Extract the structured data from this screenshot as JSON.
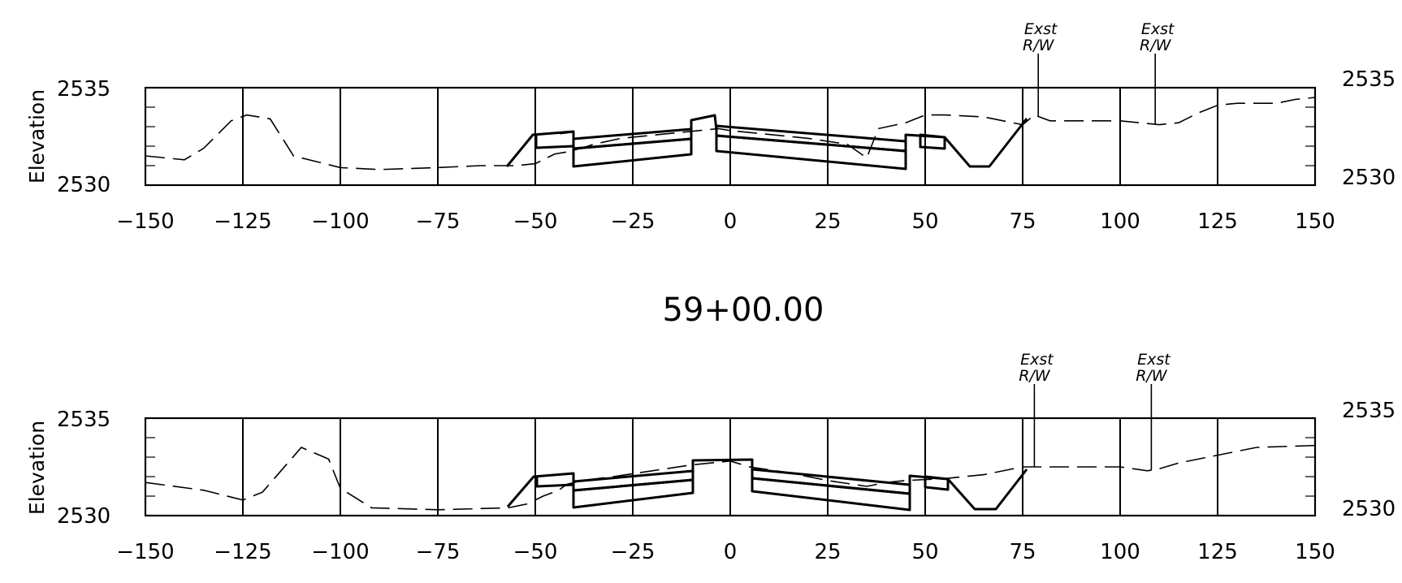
{
  "station_label": "59+00.00",
  "axis_title": "Elevation",
  "x_tick_labels": [
    "−150",
    "−125",
    "−100",
    "−75",
    "−50",
    "−25",
    "0",
    "25",
    "50",
    "75",
    "100",
    "125",
    "150"
  ],
  "panels": [
    {
      "id": "upper",
      "elevation_labels": {
        "top": "2535",
        "bottom": "2530"
      },
      "right_labels": {
        "top": "2535",
        "bottom": "2530"
      },
      "rw_markers": [
        {
          "offset": 79,
          "line1": "Exst",
          "line2": "R/W"
        },
        {
          "offset": 109,
          "line1": "Exst",
          "line2": "R/W"
        }
      ]
    },
    {
      "id": "lower",
      "elevation_labels": {
        "top": "2535",
        "bottom": "2530"
      },
      "right_labels": {
        "top": "2535",
        "bottom": "2530"
      },
      "rw_markers": [
        {
          "offset": 78,
          "line1": "Exst",
          "line2": "R/W"
        },
        {
          "offset": 108,
          "line1": "Exst",
          "line2": "R/W"
        }
      ]
    }
  ],
  "chart_data": [
    {
      "type": "line",
      "xlim": [
        -150,
        150
      ],
      "ylim": [
        2530,
        2535
      ],
      "xlabel": "",
      "ylabel": "Elevation",
      "series": [
        {
          "style": "dashed",
          "x": [
            -150,
            -140,
            -135,
            -128,
            -124,
            -118,
            -112,
            -100,
            -90,
            -75,
            -64,
            -55,
            -50,
            -45,
            -42,
            -38,
            -35,
            -28,
            -18,
            -8,
            -3,
            0,
            5,
            10,
            20,
            30,
            35,
            38,
            45,
            50,
            55,
            65,
            75,
            78,
            82,
            90,
            100,
            105,
            110,
            115,
            120,
            125,
            130,
            135,
            140,
            145,
            150
          ],
          "y": [
            2531.5,
            2531.3,
            2531.9,
            2533.3,
            2533.6,
            2533.4,
            2531.5,
            2530.9,
            2530.8,
            2530.9,
            2531.0,
            2531.0,
            2531.1,
            2531.6,
            2531.7,
            2531.9,
            2532.1,
            2532.4,
            2532.6,
            2532.8,
            2532.9,
            2532.8,
            2532.7,
            2532.6,
            2532.4,
            2532.1,
            2531.4,
            2532.9,
            2533.2,
            2533.6,
            2533.6,
            2533.5,
            2533.1,
            2533.6,
            2533.3,
            2533.3,
            2533.3,
            2533.2,
            2533.1,
            2533.2,
            2533.7,
            2534.1,
            2534.2,
            2534.2,
            2534.2,
            2534.4,
            2534.5
          ]
        }
      ]
    },
    {
      "type": "line",
      "xlim": [
        -150,
        150
      ],
      "ylim": [
        2530,
        2535
      ],
      "xlabel": "",
      "ylabel": "Elevation",
      "series": [
        {
          "style": "dashed",
          "x": [
            -150,
            -135,
            -125,
            -120,
            -110,
            -103,
            -100,
            -92,
            -75,
            -57,
            -52,
            -48,
            -44,
            -42,
            -38,
            -30,
            -20,
            -10,
            0,
            5,
            15,
            25,
            35,
            40,
            45,
            55,
            65,
            75,
            80,
            90,
            100,
            107,
            110,
            115,
            125,
            135,
            150
          ],
          "y": [
            2531.7,
            2531.3,
            2530.8,
            2531.2,
            2533.5,
            2532.9,
            2531.4,
            2530.4,
            2530.3,
            2530.4,
            2530.6,
            2531.0,
            2531.3,
            2531.6,
            2531.8,
            2532.0,
            2532.3,
            2532.6,
            2532.8,
            2532.5,
            2532.2,
            2531.8,
            2531.5,
            2531.7,
            2531.8,
            2531.9,
            2532.1,
            2532.5,
            2532.5,
            2532.5,
            2532.5,
            2532.3,
            2532.4,
            2532.7,
            2533.1,
            2533.5,
            2533.6
          ]
        }
      ]
    }
  ]
}
